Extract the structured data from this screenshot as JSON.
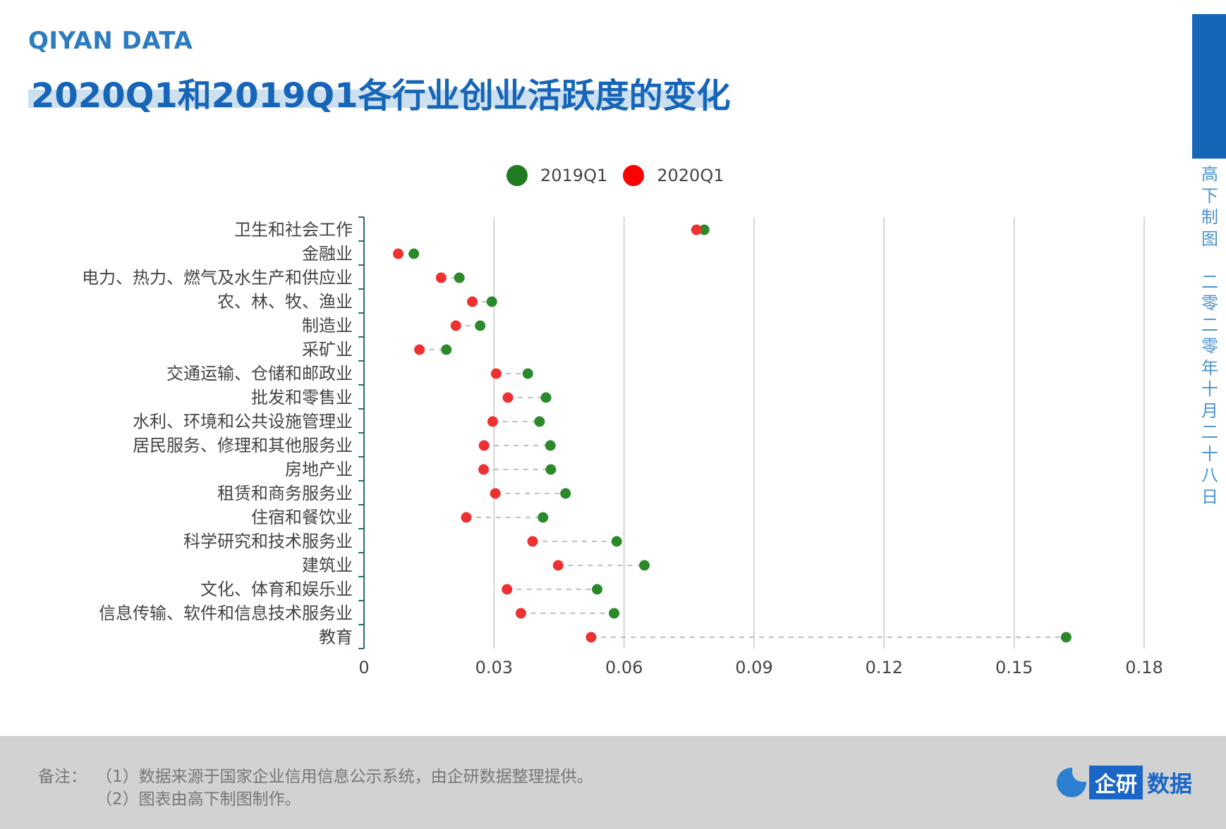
{
  "header": {
    "brand": "QIYAN DATA",
    "title": "2020Q1和2019Q1各行业创业活跃度的变化"
  },
  "sidebar": {
    "vertical_text": [
      "高",
      "下",
      "制",
      "图",
      "",
      "二",
      "零",
      "二",
      "零",
      "年",
      "十",
      "月",
      "二",
      "十",
      "八",
      "日"
    ]
  },
  "footer": {
    "note_label": "备注：",
    "note_1": "（1）数据来源于国家企业信用信息公示系统，由企研数据整理提供。",
    "note_2": "（2）图表由高下制图制作。",
    "logo_box": "企研",
    "logo_text": "数据"
  },
  "colors": {
    "series_2019": "#2a8a2a",
    "series_2020": "#ee3030",
    "title": "#1665b8",
    "accent_bar": "#1565b8"
  },
  "chart_data": {
    "type": "dumbbell",
    "legend_position": "top-center",
    "xlim": [
      0,
      0.18
    ],
    "x_ticks": [
      "0",
      "0.03",
      "0.06",
      "0.09",
      "0.12",
      "0.15",
      "0.18"
    ],
    "grid": true,
    "categories": [
      "卫生和社会工作",
      "金融业",
      "电力、热力、燃气及水生产和供应业",
      "农、林、牧、渔业",
      "制造业",
      "采矿业",
      "交通运输、仓储和邮政业",
      "批发和零售业",
      "水利、环境和公共设施管理业",
      "居民服务、修理和其他服务业",
      "房地产业",
      "租赁和商务服务业",
      "住宿和餐饮业",
      "科学研究和技术服务业",
      "建筑业",
      "文化、体育和娱乐业",
      "信息传输、软件和信息技术服务业",
      "教育"
    ],
    "series": [
      {
        "name": "2019Q1",
        "values": [
          0.0785,
          0.0115,
          0.022,
          0.0295,
          0.0268,
          0.019,
          0.0378,
          0.042,
          0.0405,
          0.043,
          0.0431,
          0.0465,
          0.0413,
          0.0583,
          0.0647,
          0.0538,
          0.0577,
          0.162
        ]
      },
      {
        "name": "2020Q1",
        "values": [
          0.0767,
          0.0079,
          0.0178,
          0.025,
          0.0212,
          0.0128,
          0.0305,
          0.0332,
          0.0297,
          0.0277,
          0.0276,
          0.0303,
          0.0236,
          0.0389,
          0.0448,
          0.033,
          0.0362,
          0.0524
        ]
      }
    ]
  }
}
